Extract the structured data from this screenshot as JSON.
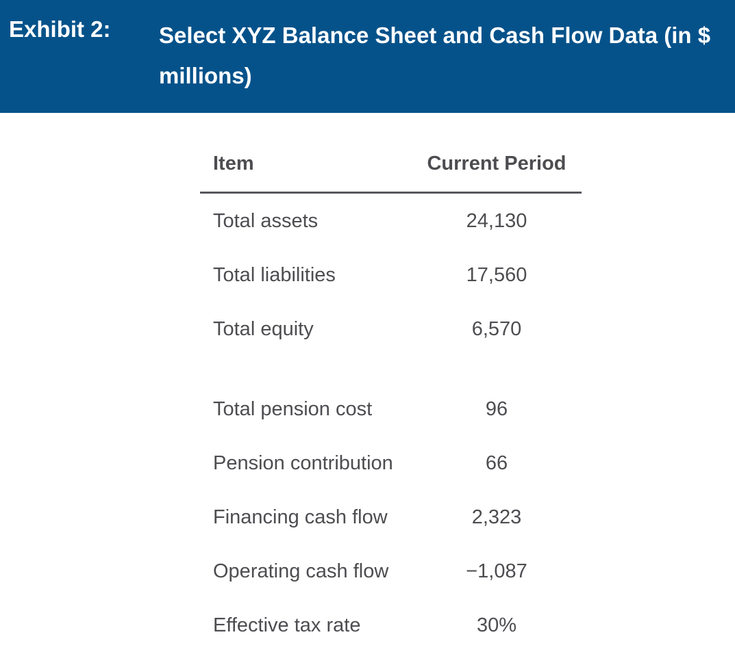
{
  "header": {
    "label": "Exhibit 2:",
    "title": "Select XYZ Balance Sheet and Cash Flow Data (in $ millions)"
  },
  "table": {
    "columns": {
      "item": "Item",
      "value": "Current Period"
    },
    "group1": [
      {
        "item": "Total assets",
        "value": "24,130"
      },
      {
        "item": "Total liabilities",
        "value": "17,560"
      },
      {
        "item": "Total equity",
        "value": "6,570"
      }
    ],
    "group2": [
      {
        "item": "Total pension cost",
        "value": "96"
      },
      {
        "item": "Pension contribution",
        "value": "66"
      },
      {
        "item": "Financing cash flow",
        "value": "2,323"
      },
      {
        "item": "Operating cash flow",
        "value": "−1,087"
      },
      {
        "item": "Effective tax rate",
        "value": "30%"
      }
    ]
  },
  "colors": {
    "header_background": "#05528a",
    "header_text": "#ffffff",
    "body_text": "#4d4d51",
    "rule": "#55575c"
  }
}
